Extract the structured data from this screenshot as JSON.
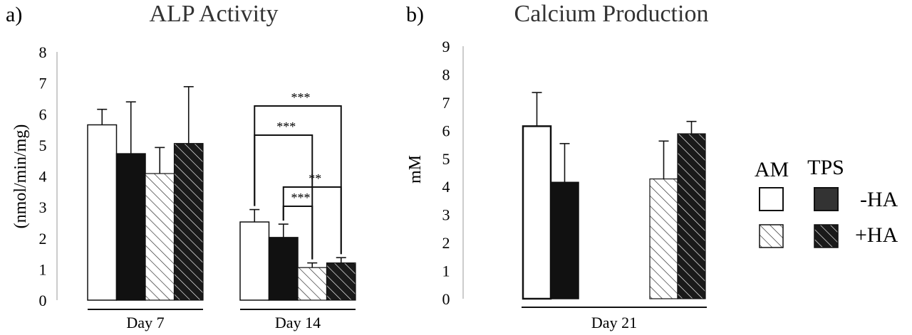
{
  "chart_data": [
    {
      "panel_label": "a)",
      "type": "bar",
      "title": "ALP Activity",
      "ylabel": "(nmol/min/mg)",
      "ylim": [
        0,
        8
      ],
      "yticks": [
        0,
        1,
        2,
        3,
        4,
        5,
        6,
        7,
        8
      ],
      "categories": [
        "Day 7",
        "Day 14"
      ],
      "series": [
        {
          "name": "AM -HA",
          "values": [
            5.65,
            2.52
          ],
          "errors": [
            0.5,
            0.4
          ]
        },
        {
          "name": "TPS -HA",
          "values": [
            4.72,
            2.02
          ],
          "errors": [
            1.67,
            0.43
          ]
        },
        {
          "name": "AM +HA",
          "values": [
            4.08,
            1.05
          ],
          "errors": [
            0.84,
            0.15
          ]
        },
        {
          "name": "TPS +HA",
          "values": [
            5.05,
            1.2
          ],
          "errors": [
            1.83,
            0.17
          ]
        }
      ],
      "significance": [
        {
          "from": "AM -HA",
          "to": "TPS +HA",
          "category": "Day 14",
          "label": "***"
        },
        {
          "from": "AM -HA",
          "to": "AM +HA",
          "category": "Day 14",
          "label": "***"
        },
        {
          "from": "TPS -HA",
          "to": "TPS +HA",
          "category": "Day 14",
          "label": "**"
        },
        {
          "from": "TPS -HA",
          "to": "AM +HA",
          "category": "Day 14",
          "label": "***"
        }
      ]
    },
    {
      "panel_label": "b)",
      "type": "bar",
      "title": "Calcium Production",
      "ylabel": "mM",
      "ylim": [
        0,
        9
      ],
      "yticks": [
        0,
        1,
        2,
        3,
        4,
        5,
        6,
        7,
        8,
        9
      ],
      "categories": [
        "Day 21"
      ],
      "series": [
        {
          "name": "AM -HA",
          "values": [
            6.15
          ],
          "errors": [
            1.2
          ]
        },
        {
          "name": "TPS -HA",
          "values": [
            4.15
          ],
          "errors": [
            1.38
          ]
        },
        {
          "name": "AM +HA",
          "values": [
            4.27
          ],
          "errors": [
            1.35
          ]
        },
        {
          "name": "TPS +HA",
          "values": [
            5.88
          ],
          "errors": [
            0.44
          ]
        }
      ]
    }
  ],
  "legend": {
    "column_headers": [
      "AM",
      "TPS"
    ],
    "row_labels": [
      "-HA",
      "+HA"
    ]
  }
}
